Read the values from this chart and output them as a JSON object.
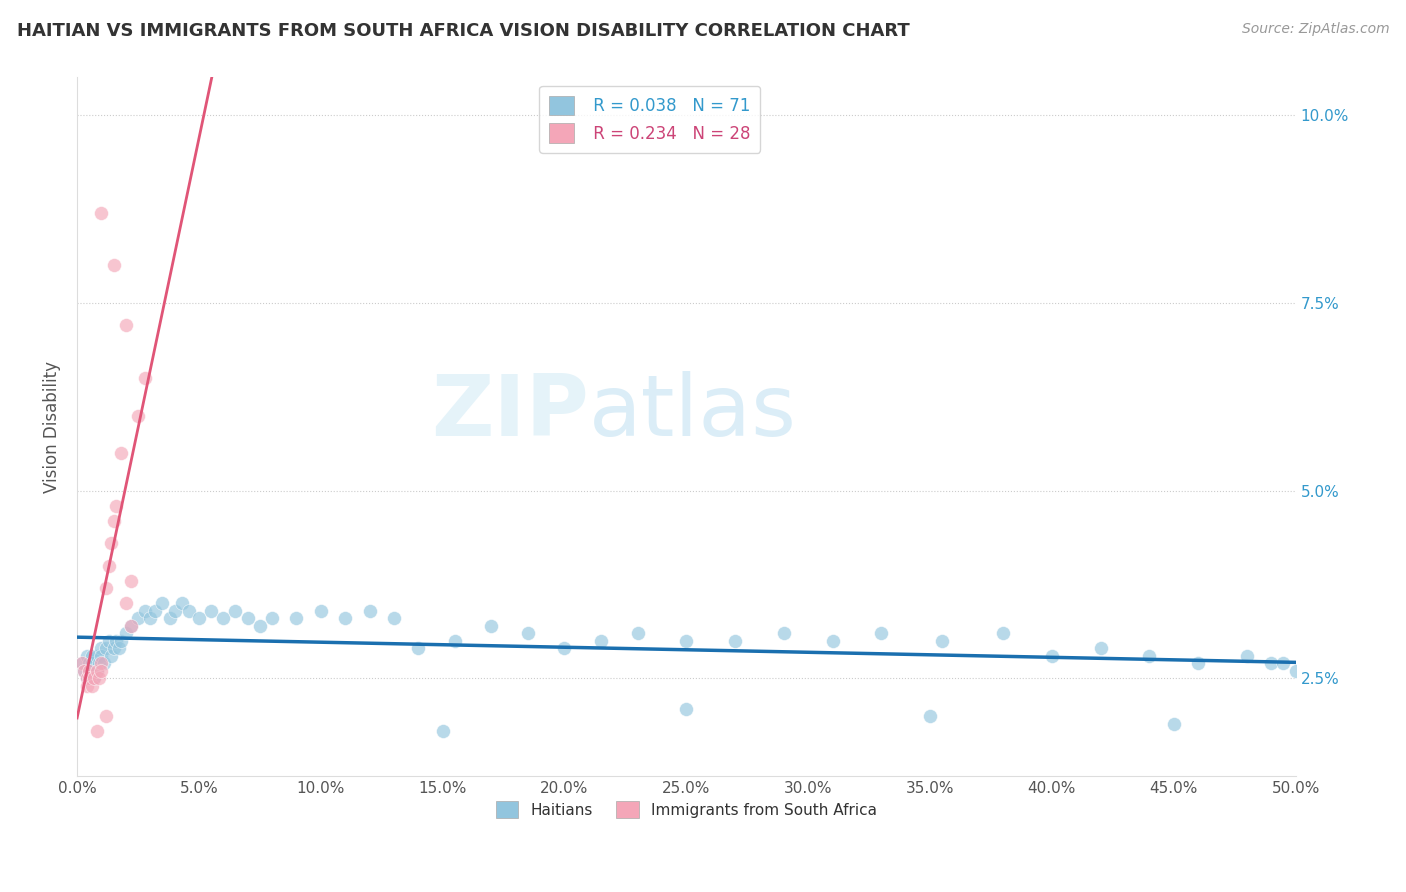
{
  "title": "HAITIAN VS IMMIGRANTS FROM SOUTH AFRICA VISION DISABILITY CORRELATION CHART",
  "source": "Source: ZipAtlas.com",
  "ylabel": "Vision Disability",
  "xmin": 0.0,
  "xmax": 0.5,
  "ymin": 0.012,
  "ymax": 0.105,
  "legend_r1": "R = 0.038",
  "legend_n1": "N = 71",
  "legend_r2": "R = 0.234",
  "legend_n2": "N = 28",
  "color_blue": "#92c5de",
  "color_pink": "#f4a6b8",
  "color_blue_line": "#1a6faf",
  "color_pink_line": "#e05577",
  "watermark_zip": "ZIP",
  "watermark_atlas": "atlas",
  "haitians_x": [
    0.002,
    0.003,
    0.004,
    0.004,
    0.005,
    0.005,
    0.006,
    0.006,
    0.007,
    0.008,
    0.008,
    0.009,
    0.01,
    0.01,
    0.011,
    0.012,
    0.013,
    0.014,
    0.015,
    0.016,
    0.017,
    0.018,
    0.02,
    0.022,
    0.025,
    0.028,
    0.03,
    0.032,
    0.035,
    0.038,
    0.04,
    0.043,
    0.046,
    0.05,
    0.055,
    0.06,
    0.065,
    0.07,
    0.075,
    0.08,
    0.09,
    0.1,
    0.11,
    0.12,
    0.13,
    0.14,
    0.155,
    0.17,
    0.185,
    0.2,
    0.215,
    0.23,
    0.25,
    0.27,
    0.29,
    0.31,
    0.33,
    0.355,
    0.38,
    0.4,
    0.42,
    0.44,
    0.46,
    0.48,
    0.49,
    0.495,
    0.5,
    0.25,
    0.35,
    0.45,
    0.15
  ],
  "haitians_y": [
    0.027,
    0.026,
    0.025,
    0.028,
    0.027,
    0.026,
    0.028,
    0.027,
    0.025,
    0.026,
    0.028,
    0.027,
    0.029,
    0.028,
    0.027,
    0.029,
    0.03,
    0.028,
    0.029,
    0.03,
    0.029,
    0.03,
    0.031,
    0.032,
    0.033,
    0.034,
    0.033,
    0.034,
    0.035,
    0.033,
    0.034,
    0.035,
    0.034,
    0.033,
    0.034,
    0.033,
    0.034,
    0.033,
    0.032,
    0.033,
    0.033,
    0.034,
    0.033,
    0.034,
    0.033,
    0.029,
    0.03,
    0.032,
    0.031,
    0.029,
    0.03,
    0.031,
    0.03,
    0.03,
    0.031,
    0.03,
    0.031,
    0.03,
    0.031,
    0.028,
    0.029,
    0.028,
    0.027,
    0.028,
    0.027,
    0.027,
    0.026,
    0.021,
    0.02,
    0.019,
    0.018
  ],
  "sa_x": [
    0.002,
    0.003,
    0.004,
    0.004,
    0.005,
    0.005,
    0.006,
    0.007,
    0.008,
    0.009,
    0.01,
    0.01,
    0.012,
    0.013,
    0.014,
    0.015,
    0.016,
    0.018,
    0.02,
    0.022,
    0.025,
    0.028,
    0.02,
    0.015,
    0.012,
    0.008,
    0.01,
    0.022
  ],
  "sa_y": [
    0.027,
    0.026,
    0.025,
    0.024,
    0.026,
    0.025,
    0.024,
    0.025,
    0.026,
    0.025,
    0.027,
    0.026,
    0.037,
    0.04,
    0.043,
    0.046,
    0.048,
    0.055,
    0.035,
    0.038,
    0.06,
    0.065,
    0.072,
    0.08,
    0.02,
    0.018,
    0.087,
    0.032
  ]
}
